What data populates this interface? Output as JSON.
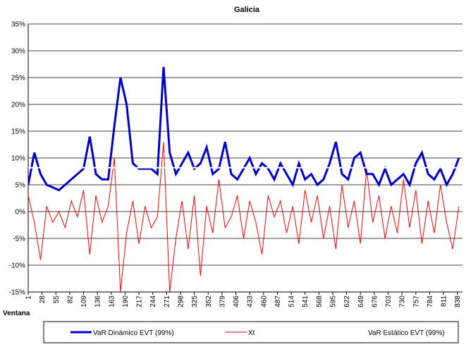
{
  "chart_data": {
    "type": "line",
    "title": "Galicia",
    "x_label": "Ventana",
    "x": [
      1,
      13,
      25,
      37,
      49,
      61,
      73,
      85,
      97,
      109,
      121,
      133,
      145,
      157,
      169,
      181,
      193,
      205,
      217,
      229,
      241,
      253,
      265,
      277,
      289,
      301,
      313,
      325,
      337,
      349,
      361,
      373,
      385,
      397,
      409,
      421,
      433,
      445,
      457,
      469,
      481,
      493,
      505,
      517,
      529,
      541,
      553,
      565,
      577,
      589,
      601,
      613,
      625,
      637,
      649,
      661,
      673,
      685,
      697,
      709,
      721,
      733,
      745,
      757,
      769,
      781,
      793,
      805,
      817,
      829,
      841
    ],
    "xlim": [
      1,
      848
    ],
    "xticks": [
      1,
      28,
      55,
      82,
      109,
      136,
      163,
      190,
      217,
      244,
      271,
      298,
      325,
      352,
      379,
      406,
      433,
      460,
      487,
      514,
      541,
      568,
      595,
      622,
      649,
      676,
      703,
      730,
      757,
      784,
      811,
      838
    ],
    "ylim": [
      -15,
      35
    ],
    "yticks": [
      {
        "value": -15,
        "label": "-15%"
      },
      {
        "value": -10,
        "label": "-10%"
      },
      {
        "value": -5,
        "label": "-5%"
      },
      {
        "value": 0,
        "label": "0%"
      },
      {
        "value": 5,
        "label": "5%"
      },
      {
        "value": 10,
        "label": "10%"
      },
      {
        "value": 15,
        "label": "15%"
      },
      {
        "value": 20,
        "label": "20%"
      },
      {
        "value": 25,
        "label": "25%"
      },
      {
        "value": 30,
        "label": "30%"
      },
      {
        "value": 35,
        "label": "35%"
      }
    ],
    "grid": true,
    "series": [
      {
        "name": "VaR Dinámico EVT (99%)",
        "color": "#0000cc",
        "width": 3,
        "values": [
          5,
          11,
          7,
          5,
          4.5,
          4,
          5,
          6,
          7,
          8,
          14,
          7,
          6,
          6,
          16,
          25,
          20,
          9,
          8,
          8,
          8,
          7,
          27,
          11,
          7,
          9,
          11,
          8,
          9,
          12,
          7,
          8,
          13,
          7,
          6,
          8,
          10,
          7,
          9,
          8,
          6,
          9,
          7,
          5,
          9,
          6,
          7,
          5,
          6,
          9,
          13,
          7,
          6,
          10,
          11,
          7,
          7,
          5,
          8,
          5,
          6,
          7,
          5,
          9,
          11,
          7,
          6,
          8,
          5,
          7,
          10
        ]
      },
      {
        "name": "Xt",
        "color": "#ff0000",
        "width": 1,
        "values": [
          3,
          -2,
          -9,
          1,
          -2,
          0,
          -3,
          2,
          -1,
          4,
          -8,
          3,
          -2,
          1,
          10,
          -15,
          -4,
          2,
          -6,
          1,
          -3,
          -1,
          13,
          -15,
          -5,
          2,
          -7,
          3,
          -12,
          1,
          -4,
          6,
          -3,
          -1,
          3,
          -5,
          2,
          -2,
          -8,
          3,
          -1,
          2,
          -4,
          1,
          -6,
          4,
          -2,
          3,
          -5,
          1,
          -7,
          5,
          -3,
          2,
          -6,
          8,
          -2,
          3,
          -5,
          1,
          -4,
          6,
          -3,
          4,
          -6,
          2,
          -4,
          5,
          -2,
          -7,
          1
        ]
      },
      {
        "name": "VaR Estático EVT (99%)",
        "color": "#ffffff",
        "width": 2,
        "values": [
          8.2,
          8.2,
          8.2,
          8.2,
          8.2,
          8.2,
          8.2,
          8.2,
          8.2,
          8.2,
          8.2,
          8.2,
          8.2,
          8.2,
          8.2,
          8.2,
          8.2,
          8.2,
          8.2,
          8.2,
          8.2,
          8.2,
          8.2,
          8.2,
          8.2,
          8.2,
          8.2,
          8.2,
          8.2,
          8.2,
          8.2,
          8.2,
          8.2,
          8.2,
          8.2,
          8.2,
          8.2,
          8.2,
          8.2,
          8.2,
          8.2,
          8.2,
          8.2,
          8.2,
          8.2,
          8.2,
          8.2,
          8.2,
          8.2,
          8.2,
          8.2,
          8.2,
          8.2,
          8.2,
          8.2,
          8.2,
          8.2,
          8.2,
          8.2,
          8.2,
          8.2,
          8.2,
          8.2,
          8.2,
          8.2,
          8.2,
          8.2,
          8.2,
          8.2,
          8.2,
          8.2
        ]
      }
    ]
  }
}
